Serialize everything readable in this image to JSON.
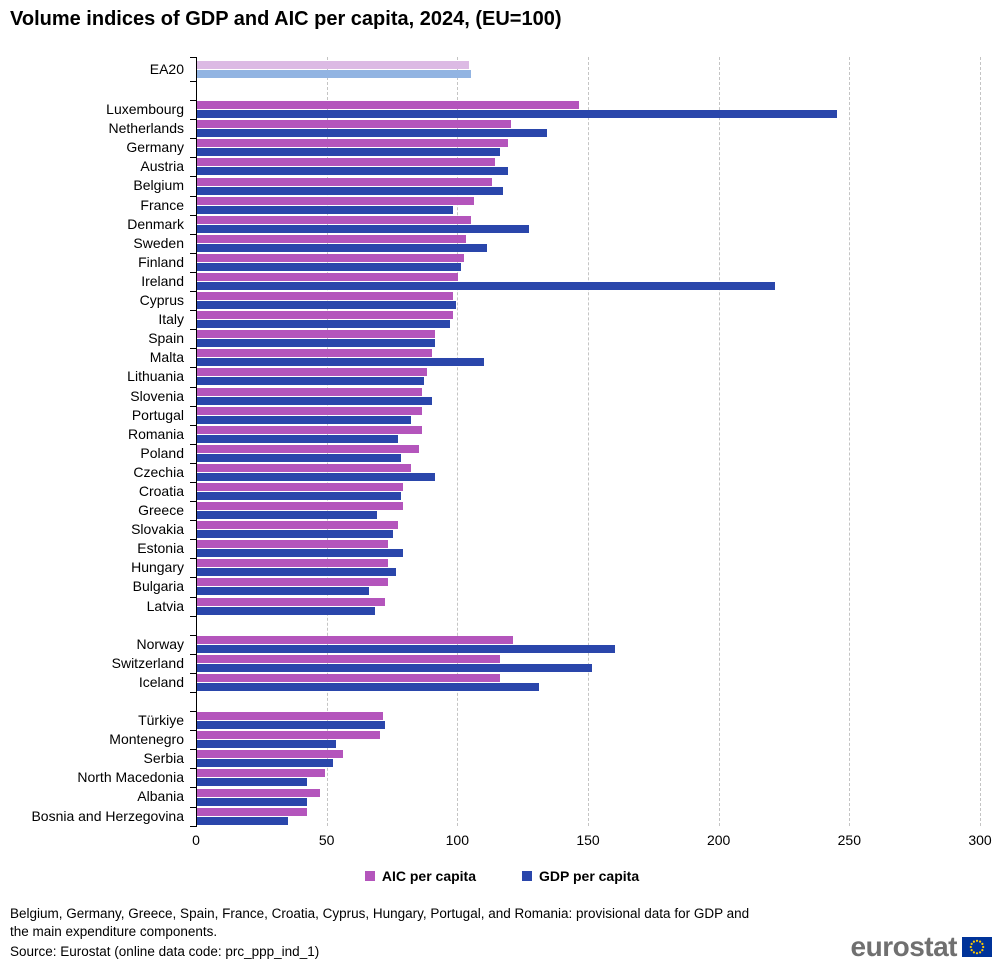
{
  "title": "Volume indices of GDP and AIC per capita, 2024, (EU=100)",
  "legend": {
    "aic": "AIC per capita",
    "gdp": "GDP per capita"
  },
  "footnote_line1": "Belgium, Germany, Greece, Spain, France, Croatia, Cyprus, Hungary, Portugal, and Romania: provisional data for GDP and",
  "footnote_line2": "the main expenditure components.",
  "source": "Source: Eurostat (online data code: prc_ppp_ind_1)",
  "logo": {
    "text": "eurostat"
  },
  "colors": {
    "aic": "#b455bc",
    "gdp": "#2a46ab",
    "ea_aic": "#dcbae4",
    "ea_gdp": "#92b4e2",
    "gridline": "#c4c4c4",
    "axis": "#000000",
    "logo_text": "#707070",
    "flag_blue": "#003399",
    "flag_stars": "#ffcc00"
  },
  "chart_data": {
    "type": "bar",
    "orientation": "horizontal",
    "title": "Volume indices of GDP and AIC per capita, 2024, (EU=100)",
    "xlabel": "",
    "ylabel": "",
    "xlim": [
      0,
      300
    ],
    "x_ticks": [
      0,
      50,
      100,
      150,
      200,
      250,
      300
    ],
    "grid": "vertical-dashed",
    "legend_position": "bottom",
    "series": [
      {
        "name": "AIC per capita",
        "key": "aic"
      },
      {
        "name": "GDP per capita",
        "key": "gdp"
      }
    ],
    "groups": [
      {
        "name": "euro-area",
        "rows": [
          {
            "label": "EA20",
            "aic": 104,
            "gdp": 105,
            "highlight": true
          }
        ]
      },
      {
        "name": "eu-members",
        "rows": [
          {
            "label": "Luxembourg",
            "aic": 146,
            "gdp": 245
          },
          {
            "label": "Netherlands",
            "aic": 120,
            "gdp": 134
          },
          {
            "label": "Germany",
            "aic": 119,
            "gdp": 116
          },
          {
            "label": "Austria",
            "aic": 114,
            "gdp": 119
          },
          {
            "label": "Belgium",
            "aic": 113,
            "gdp": 117
          },
          {
            "label": "France",
            "aic": 106,
            "gdp": 98
          },
          {
            "label": "Denmark",
            "aic": 105,
            "gdp": 127
          },
          {
            "label": "Sweden",
            "aic": 103,
            "gdp": 111
          },
          {
            "label": "Finland",
            "aic": 102,
            "gdp": 101
          },
          {
            "label": "Ireland",
            "aic": 100,
            "gdp": 221
          },
          {
            "label": "Cyprus",
            "aic": 98,
            "gdp": 99
          },
          {
            "label": "Italy",
            "aic": 98,
            "gdp": 97
          },
          {
            "label": "Spain",
            "aic": 91,
            "gdp": 91
          },
          {
            "label": "Malta",
            "aic": 90,
            "gdp": 110
          },
          {
            "label": "Lithuania",
            "aic": 88,
            "gdp": 87
          },
          {
            "label": "Slovenia",
            "aic": 86,
            "gdp": 90
          },
          {
            "label": "Portugal",
            "aic": 86,
            "gdp": 82
          },
          {
            "label": "Romania",
            "aic": 86,
            "gdp": 77
          },
          {
            "label": "Poland",
            "aic": 85,
            "gdp": 78
          },
          {
            "label": "Czechia",
            "aic": 82,
            "gdp": 91
          },
          {
            "label": "Croatia",
            "aic": 79,
            "gdp": 78
          },
          {
            "label": "Greece",
            "aic": 79,
            "gdp": 69
          },
          {
            "label": "Slovakia",
            "aic": 77,
            "gdp": 75
          },
          {
            "label": "Estonia",
            "aic": 73,
            "gdp": 79
          },
          {
            "label": "Hungary",
            "aic": 73,
            "gdp": 76
          },
          {
            "label": "Bulgaria",
            "aic": 73,
            "gdp": 66
          },
          {
            "label": "Latvia",
            "aic": 72,
            "gdp": 68
          }
        ]
      },
      {
        "name": "efta",
        "rows": [
          {
            "label": "Norway",
            "aic": 121,
            "gdp": 160
          },
          {
            "label": "Switzerland",
            "aic": 116,
            "gdp": 151
          },
          {
            "label": "Iceland",
            "aic": 116,
            "gdp": 131
          }
        ]
      },
      {
        "name": "candidates",
        "rows": [
          {
            "label": "Türkiye",
            "aic": 71,
            "gdp": 72
          },
          {
            "label": "Montenegro",
            "aic": 70,
            "gdp": 53
          },
          {
            "label": "Serbia",
            "aic": 56,
            "gdp": 52
          },
          {
            "label": "North Macedonia",
            "aic": 49,
            "gdp": 42
          },
          {
            "label": "Albania",
            "aic": 47,
            "gdp": 42
          },
          {
            "label": "Bosnia and Herzegovina",
            "aic": 42,
            "gdp": 35
          }
        ]
      }
    ]
  }
}
